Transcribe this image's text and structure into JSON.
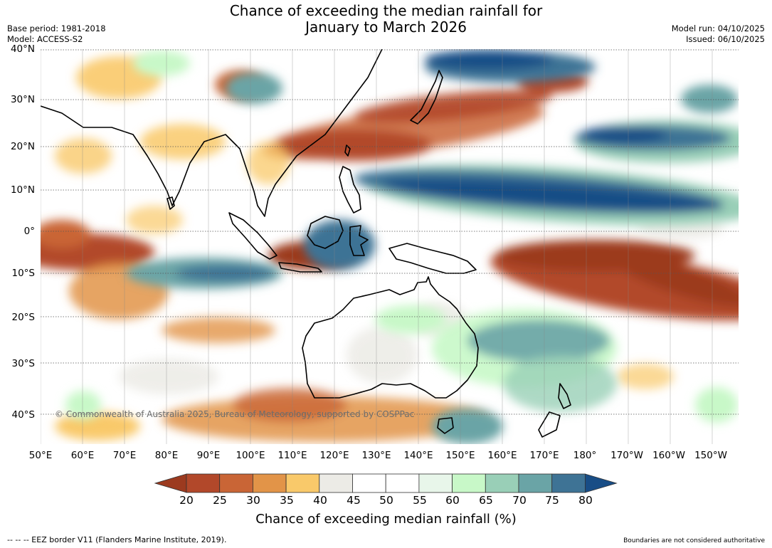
{
  "title": {
    "line1": "Chance of exceeding the median rainfall for",
    "line2": "January to March 2026"
  },
  "meta": {
    "base_period": "Base period: 1981-2018",
    "model": "Model: ACCESS-S2",
    "model_run": "Model run: 04/10/2025",
    "issued": "Issued: 06/10/2025"
  },
  "map": {
    "copyright": "© Commonwealth of Australia 2025, Bureau of Meteorology, supported by COSPPac",
    "lat_labels": [
      "40°N",
      "30°N",
      "20°N",
      "10°N",
      "0°",
      "10°S",
      "20°S",
      "30°S",
      "40°S"
    ],
    "lon_labels": [
      "50°E",
      "60°E",
      "70°E",
      "80°E",
      "90°E",
      "100°E",
      "110°E",
      "120°E",
      "130°E",
      "140°E",
      "150°E",
      "160°E",
      "170°E",
      "180°",
      "170°W",
      "160°W",
      "150°W"
    ],
    "lat_values": [
      40,
      30,
      20,
      10,
      0,
      -10,
      -20,
      -30,
      -40
    ],
    "lon_values": [
      50,
      60,
      70,
      80,
      90,
      100,
      110,
      120,
      130,
      140,
      150,
      160,
      170,
      180,
      190,
      200,
      210
    ]
  },
  "colorbar": {
    "ticks": [
      "20",
      "25",
      "30",
      "35",
      "40",
      "45",
      "50",
      "55",
      "60",
      "65",
      "70",
      "75",
      "80"
    ],
    "colors": [
      "#9c3a1f",
      "#b2482a",
      "#c96536",
      "#e29448",
      "#f9c96a",
      "#ecebe6",
      "#ffffff",
      "#ffffff",
      "#e8f6ea",
      "#c8f8c8",
      "#99cfb7",
      "#6aa4a6",
      "#3e7395",
      "#184d86"
    ],
    "title": "Chance of exceeding median rainfall (%)"
  },
  "footer": {
    "eez_note": "--  --  -- EEZ border V11 (Flanders Marine Institute, 2019).",
    "boundaries_note": "Boundaries are not considered authoritative"
  }
}
